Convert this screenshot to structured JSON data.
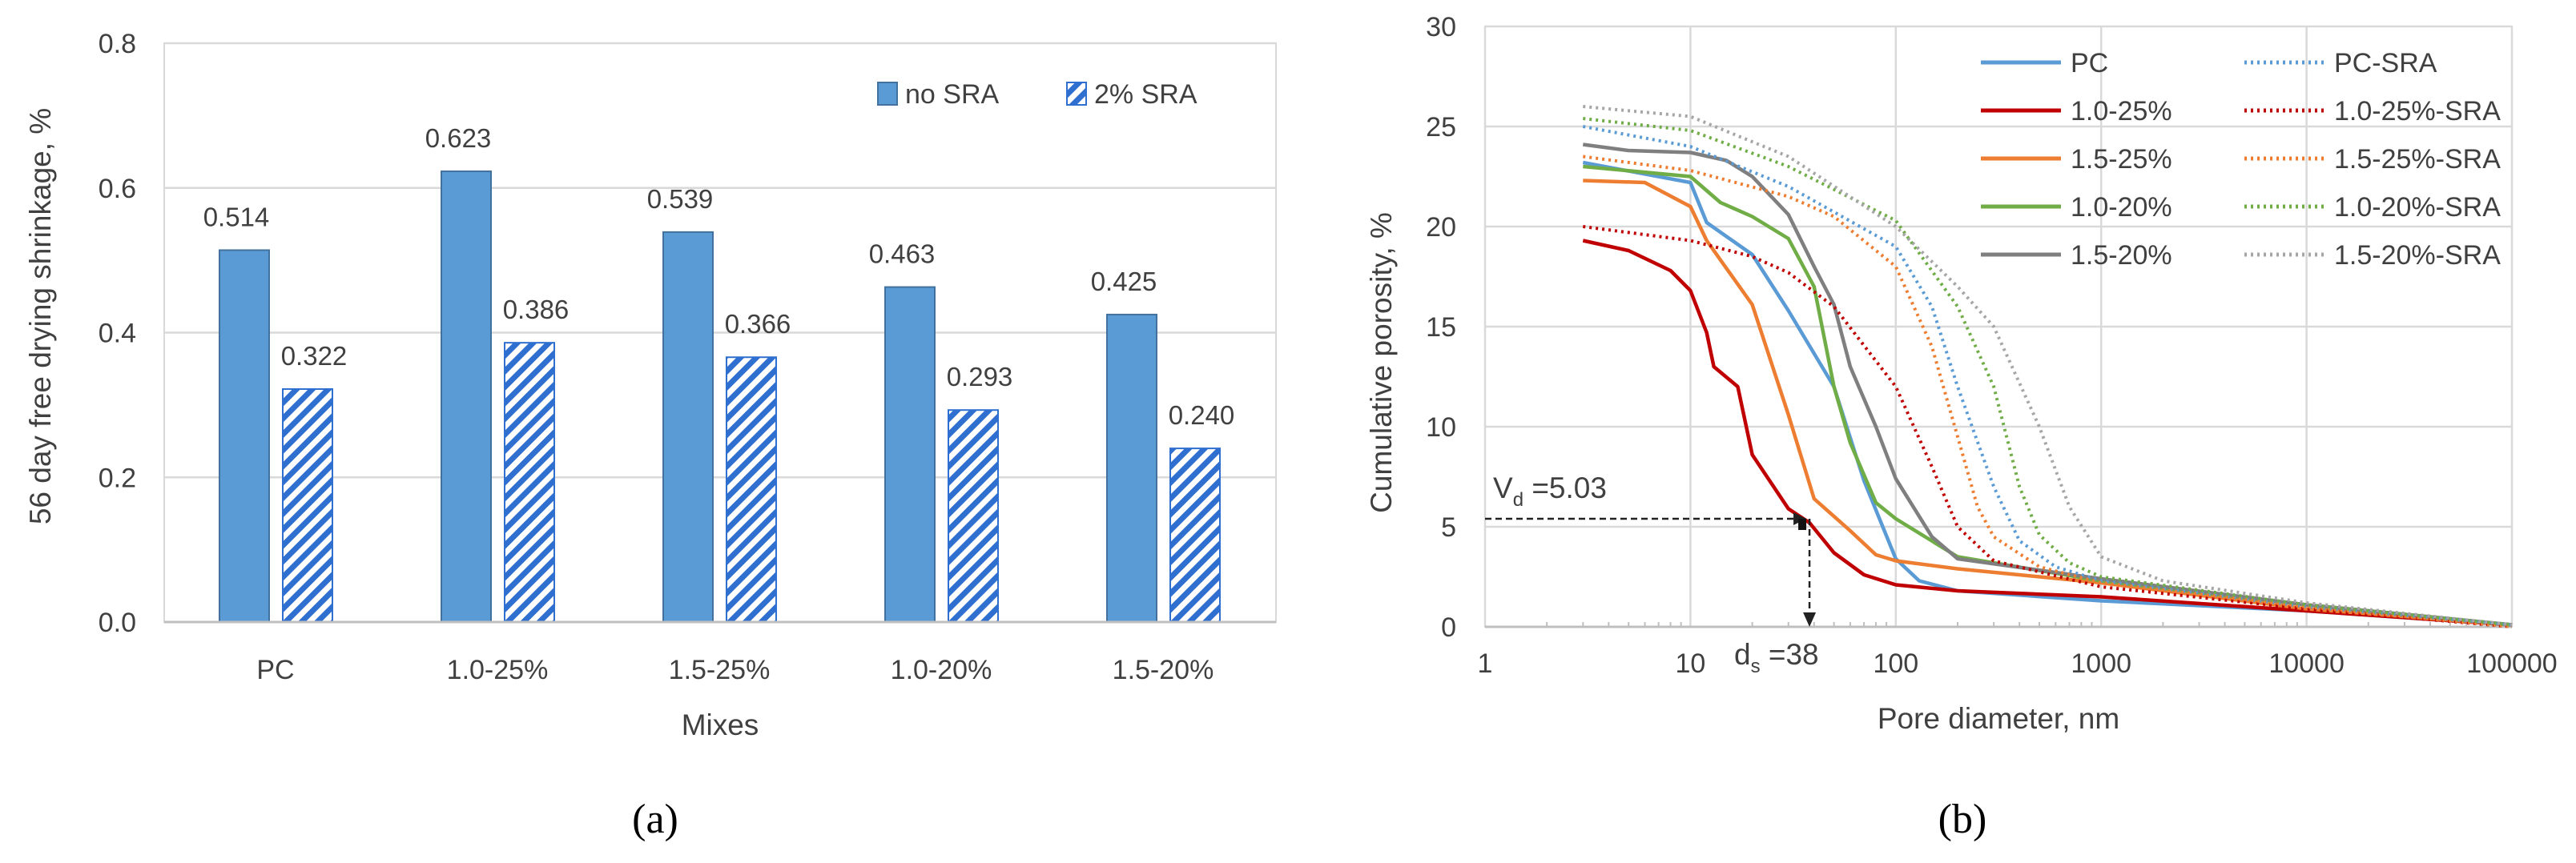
{
  "chart_data": [
    {
      "type": "bar",
      "caption": "(a)",
      "xlabel": "Mixes",
      "ylabel": "56 day free drying shrinkage, %",
      "ylim": [
        0,
        0.8
      ],
      "yticks": [
        "0.0",
        "0.2",
        "0.4",
        "0.6",
        "0.8"
      ],
      "grid": true,
      "legend_position": "top-right",
      "categories": [
        "PC",
        "1.0-25%",
        "1.5-25%",
        "1.0-20%",
        "1.5-20%"
      ],
      "series": [
        {
          "name": "no SRA",
          "style": "solid",
          "color": "#5b9bd5",
          "values": [
            0.514,
            0.623,
            0.539,
            0.463,
            0.425
          ],
          "labels": [
            "0.514",
            "0.623",
            "0.539",
            "0.463",
            "0.425"
          ]
        },
        {
          "name": "2% SRA",
          "style": "hatched",
          "color": "#2f6fd0",
          "values": [
            0.322,
            0.386,
            0.366,
            0.293,
            0.24
          ],
          "labels": [
            "0.322",
            "0.386",
            "0.366",
            "0.293",
            "0.240"
          ]
        }
      ]
    },
    {
      "type": "line",
      "caption": "(b)",
      "xlabel": "Pore diameter, nm",
      "ylabel": "Cumulative porosity, %",
      "xscale": "log",
      "xlim": [
        1,
        100000
      ],
      "ylim": [
        0,
        30
      ],
      "xticks": [
        "1",
        "10",
        "100",
        "1000",
        "10000",
        "100000"
      ],
      "yticks": [
        "0",
        "5",
        "10",
        "15",
        "20",
        "25",
        "30"
      ],
      "grid": true,
      "legend_position": "top-right",
      "annotations": {
        "vd": {
          "label": "V",
          "sub": "d",
          "text": " =5.03",
          "y": 5.4,
          "x_to": 38
        },
        "ds": {
          "label": "d",
          "sub": "s",
          "text": " =38",
          "x": 38
        }
      },
      "series": [
        {
          "name": "PC",
          "color": "#5b9bd5",
          "dash": false,
          "points": [
            [
              3,
              23.2
            ],
            [
              10,
              22.2
            ],
            [
              12,
              20.2
            ],
            [
              20,
              18.6
            ],
            [
              30,
              15.8
            ],
            [
              50,
              12
            ],
            [
              70,
              7.3
            ],
            [
              100,
              3.4
            ],
            [
              130,
              2.3
            ],
            [
              200,
              1.8
            ],
            [
              1000,
              1.3
            ],
            [
              10000,
              0.8
            ],
            [
              100000,
              0.1
            ]
          ]
        },
        {
          "name": "1.0-25%",
          "color": "#c00000",
          "dash": false,
          "points": [
            [
              3,
              19.3
            ],
            [
              5,
              18.8
            ],
            [
              8,
              17.8
            ],
            [
              10,
              16.8
            ],
            [
              12,
              14.7
            ],
            [
              13,
              13
            ],
            [
              17,
              12
            ],
            [
              20,
              8.6
            ],
            [
              30,
              5.9
            ],
            [
              38,
              5.2
            ],
            [
              50,
              3.7
            ],
            [
              70,
              2.6
            ],
            [
              100,
              2.1
            ],
            [
              200,
              1.8
            ],
            [
              1000,
              1.5
            ],
            [
              10000,
              0.8
            ],
            [
              100000,
              0.1
            ]
          ]
        },
        {
          "name": "1.5-25%",
          "color": "#ed7d31",
          "dash": false,
          "points": [
            [
              3,
              22.3
            ],
            [
              6,
              22.2
            ],
            [
              10,
              21
            ],
            [
              12,
              19.3
            ],
            [
              20,
              16.1
            ],
            [
              30,
              10.6
            ],
            [
              40,
              6.4
            ],
            [
              60,
              4.8
            ],
            [
              80,
              3.6
            ],
            [
              100,
              3.3
            ],
            [
              200,
              2.9
            ],
            [
              1000,
              2.2
            ],
            [
              10000,
              0.9
            ],
            [
              100000,
              0.1
            ]
          ]
        },
        {
          "name": "1.0-20%",
          "color": "#70ad47",
          "dash": false,
          "points": [
            [
              3,
              23
            ],
            [
              10,
              22.5
            ],
            [
              14,
              21.2
            ],
            [
              20,
              20.5
            ],
            [
              30,
              19.4
            ],
            [
              40,
              17
            ],
            [
              50,
              12
            ],
            [
              60,
              9.2
            ],
            [
              80,
              6.2
            ],
            [
              100,
              5.4
            ],
            [
              200,
              3.5
            ],
            [
              1000,
              2.3
            ],
            [
              10000,
              1.1
            ],
            [
              100000,
              0.1
            ]
          ]
        },
        {
          "name": "1.5-20%",
          "color": "#7f7f7f",
          "dash": false,
          "points": [
            [
              3,
              24.1
            ],
            [
              5,
              23.8
            ],
            [
              10,
              23.7
            ],
            [
              15,
              23.3
            ],
            [
              20,
              22.5
            ],
            [
              30,
              20.6
            ],
            [
              40,
              18
            ],
            [
              50,
              16.1
            ],
            [
              60,
              13
            ],
            [
              80,
              10
            ],
            [
              100,
              7.4
            ],
            [
              150,
              4.5
            ],
            [
              200,
              3.4
            ],
            [
              1000,
              2.4
            ],
            [
              10000,
              1.1
            ],
            [
              100000,
              0.1
            ]
          ]
        },
        {
          "name": "PC-SRA",
          "color": "#5b9bd5",
          "dash": true,
          "points": [
            [
              3,
              25
            ],
            [
              10,
              24
            ],
            [
              30,
              22
            ],
            [
              100,
              19
            ],
            [
              150,
              16
            ],
            [
              200,
              12
            ],
            [
              300,
              7
            ],
            [
              400,
              4.3
            ],
            [
              600,
              3
            ],
            [
              1000,
              2.3
            ],
            [
              10000,
              1
            ],
            [
              100000,
              0.1
            ]
          ]
        },
        {
          "name": "1.0-25%-SRA",
          "color": "#c00000",
          "dash": true,
          "points": [
            [
              3,
              20
            ],
            [
              10,
              19.3
            ],
            [
              20,
              18.5
            ],
            [
              30,
              17.7
            ],
            [
              50,
              16
            ],
            [
              100,
              12
            ],
            [
              150,
              8
            ],
            [
              200,
              5
            ],
            [
              300,
              3.3
            ],
            [
              1000,
              2
            ],
            [
              10000,
              0.9
            ],
            [
              100000,
              0
            ]
          ]
        },
        {
          "name": "1.5-25%-SRA",
          "color": "#ed7d31",
          "dash": true,
          "points": [
            [
              3,
              23.5
            ],
            [
              10,
              22.8
            ],
            [
              30,
              21.5
            ],
            [
              50,
              20.5
            ],
            [
              100,
              18
            ],
            [
              150,
              14
            ],
            [
              200,
              9.5
            ],
            [
              250,
              6
            ],
            [
              300,
              4.5
            ],
            [
              500,
              3
            ],
            [
              1000,
              2.2
            ],
            [
              10000,
              1
            ],
            [
              100000,
              0
            ]
          ]
        },
        {
          "name": "1.0-20%-SRA",
          "color": "#70ad47",
          "dash": true,
          "points": [
            [
              3,
              25.4
            ],
            [
              10,
              24.8
            ],
            [
              30,
              23
            ],
            [
              100,
              20.3
            ],
            [
              200,
              16
            ],
            [
              300,
              12
            ],
            [
              400,
              7
            ],
            [
              500,
              4.6
            ],
            [
              700,
              3.2
            ],
            [
              1000,
              2.5
            ],
            [
              10000,
              1.1
            ],
            [
              100000,
              0.1
            ]
          ]
        },
        {
          "name": "1.5-20%-SRA",
          "color": "#a6a6a6",
          "dash": true,
          "points": [
            [
              3,
              26
            ],
            [
              10,
              25.5
            ],
            [
              30,
              23.5
            ],
            [
              100,
              20
            ],
            [
              200,
              17
            ],
            [
              300,
              15
            ],
            [
              500,
              10
            ],
            [
              700,
              6
            ],
            [
              1000,
              3.5
            ],
            [
              2000,
              2.3
            ],
            [
              10000,
              1.2
            ],
            [
              100000,
              0.1
            ]
          ]
        }
      ]
    }
  ]
}
